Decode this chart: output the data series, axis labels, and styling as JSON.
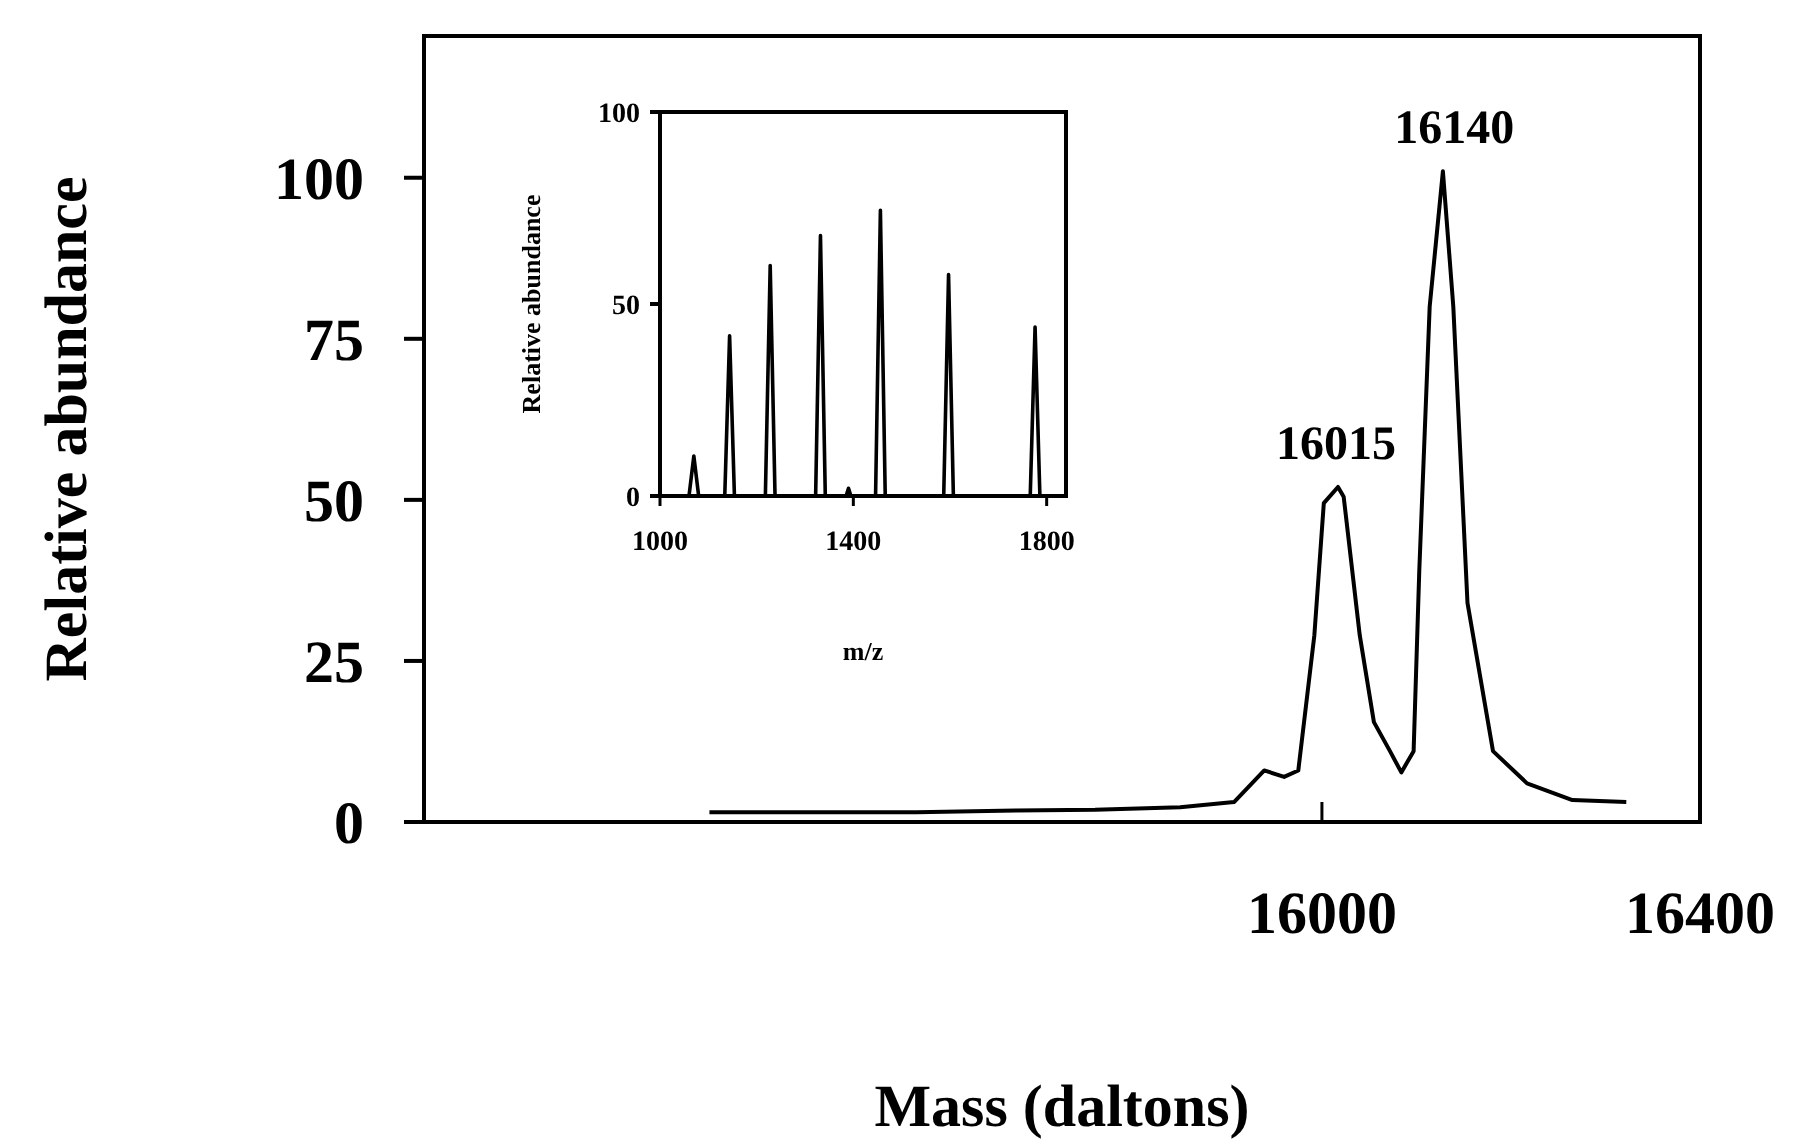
{
  "chart_data": [
    {
      "type": "line",
      "xlabel": "Mass (daltons)",
      "ylabel": "Relative abundance",
      "xlim": [
        15050,
        16400
      ],
      "ylim": [
        0,
        122
      ],
      "xticks": [
        16000,
        16400
      ],
      "yticks": [
        0,
        25,
        50,
        75,
        100
      ],
      "grid": false,
      "marker": "none",
      "line_style": "solid",
      "series": [
        {
          "color": "#000000",
          "x": [
            15352,
            15450,
            15571,
            15676,
            15760,
            15850,
            15907,
            15939,
            15960,
            15975,
            15992,
            16002,
            16017,
            16023,
            16040,
            16055,
            16072,
            16084,
            16097,
            16103,
            16114,
            16128,
            16139,
            16154,
            16181,
            16217,
            16265,
            16322
          ],
          "values": [
            1.5,
            1.5,
            1.5,
            1.8,
            1.9,
            2.3,
            3.1,
            8,
            7,
            8,
            29,
            49.5,
            52,
            50.5,
            29,
            15.5,
            11,
            7.7,
            11,
            39,
            80,
            101,
            80,
            34,
            11,
            6,
            3.4,
            3.1
          ]
        }
      ],
      "annotations": [
        {
          "text": "16015",
          "x": 16015,
          "y": 52
        },
        {
          "text": "16140",
          "x": 16140,
          "y": 101
        }
      ]
    },
    {
      "type": "line",
      "xlabel": "m/z",
      "ylabel": "Relative abundance",
      "xlim": [
        1000,
        1840
      ],
      "ylim": [
        0,
        100
      ],
      "xticks": [
        1000,
        1400,
        1800
      ],
      "yticks": [
        0,
        50,
        100
      ],
      "grid": false,
      "marker": "none",
      "line_style": "solid",
      "series": [
        {
          "color": "#000000",
          "x": [
            1000,
            1060,
            1070,
            1080,
            1134,
            1144,
            1154,
            1218,
            1228,
            1238,
            1322,
            1332,
            1342,
            1385,
            1390,
            1395,
            1446,
            1456,
            1466,
            1587,
            1597,
            1607,
            1766,
            1776,
            1786,
            1840
          ],
          "values": [
            0,
            0,
            10.4,
            0,
            0,
            41.7,
            0,
            0,
            60,
            0,
            0,
            67.8,
            0,
            0,
            2,
            0,
            0,
            74.4,
            0,
            0,
            57.7,
            0,
            0,
            44,
            0,
            0
          ]
        }
      ]
    }
  ]
}
